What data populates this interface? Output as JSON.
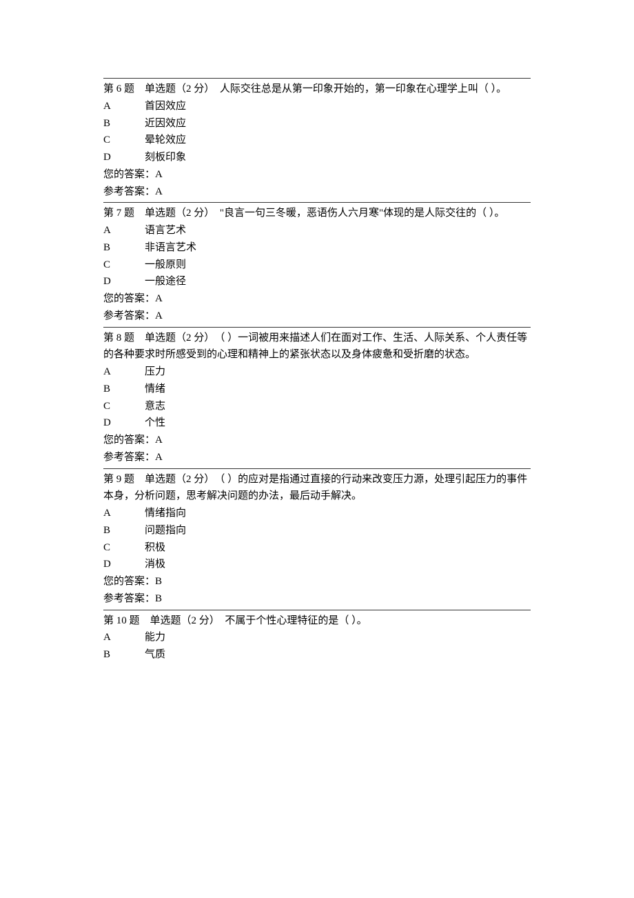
{
  "text_color": "#000000",
  "background_color": "#ffffff",
  "divider_color": "#333333",
  "font_family": "SimSun",
  "font_size_pt": 11,
  "questions": [
    {
      "number": "第 6 题",
      "type": "单选题",
      "points": "（2 分）",
      "prompt": "人际交往总是从第一印象开始的，第一印象在心理学上叫（ ）。",
      "options": [
        {
          "letter": "A",
          "text": "首因效应"
        },
        {
          "letter": "B",
          "text": "近因效应"
        },
        {
          "letter": "C",
          "text": "晕轮效应"
        },
        {
          "letter": "D",
          "text": "刻板印象"
        }
      ],
      "your_answer_label": "您的答案：",
      "your_answer_value": "A",
      "ref_answer_label": "参考答案：",
      "ref_answer_value": "A"
    },
    {
      "number": "第 7 题",
      "type": "单选题",
      "points": "（2 分）",
      "prompt": "\"良言一句三冬暖，恶语伤人六月寒\"体现的是人际交往的（ ）。",
      "options": [
        {
          "letter": "A",
          "text": "语言艺术"
        },
        {
          "letter": "B",
          "text": "非语言艺术"
        },
        {
          "letter": "C",
          "text": "一般原则"
        },
        {
          "letter": "D",
          "text": "一般途径"
        }
      ],
      "your_answer_label": "您的答案：",
      "your_answer_value": "A",
      "ref_answer_label": "参考答案：",
      "ref_answer_value": "A"
    },
    {
      "number": "第 8 题",
      "type": "单选题",
      "points": "（2 分）",
      "prompt": "（ ）一词被用来描述人们在面对工作、生活、人际关系、个人责任等的各种要求时所感受到的心理和精神上的紧张状态以及身体疲惫和受折磨的状态。",
      "options": [
        {
          "letter": "A",
          "text": "压力"
        },
        {
          "letter": "B",
          "text": "情绪"
        },
        {
          "letter": "C",
          "text": "意志"
        },
        {
          "letter": "D",
          "text": "个性"
        }
      ],
      "your_answer_label": "您的答案：",
      "your_answer_value": "A",
      "ref_answer_label": "参考答案：",
      "ref_answer_value": "A"
    },
    {
      "number": "第 9 题",
      "type": "单选题",
      "points": "（2 分）",
      "prompt": "（ ）的应对是指通过直接的行动来改变压力源，处理引起压力的事件本身，分析问题，思考解决问题的办法，最后动手解决。",
      "options": [
        {
          "letter": "A",
          "text": "情绪指向"
        },
        {
          "letter": "B",
          "text": "问题指向"
        },
        {
          "letter": "C",
          "text": "积极"
        },
        {
          "letter": "D",
          "text": "消极"
        }
      ],
      "your_answer_label": "您的答案：",
      "your_answer_value": "B",
      "ref_answer_label": "参考答案：",
      "ref_answer_value": "B"
    },
    {
      "number": "第 10 题",
      "type": "单选题",
      "points": "（2 分）",
      "prompt": "不属于个性心理特征的是（ ）。",
      "options": [
        {
          "letter": "A",
          "text": "能力"
        },
        {
          "letter": "B",
          "text": "气质"
        }
      ],
      "your_answer_label": "",
      "your_answer_value": "",
      "ref_answer_label": "",
      "ref_answer_value": ""
    }
  ]
}
